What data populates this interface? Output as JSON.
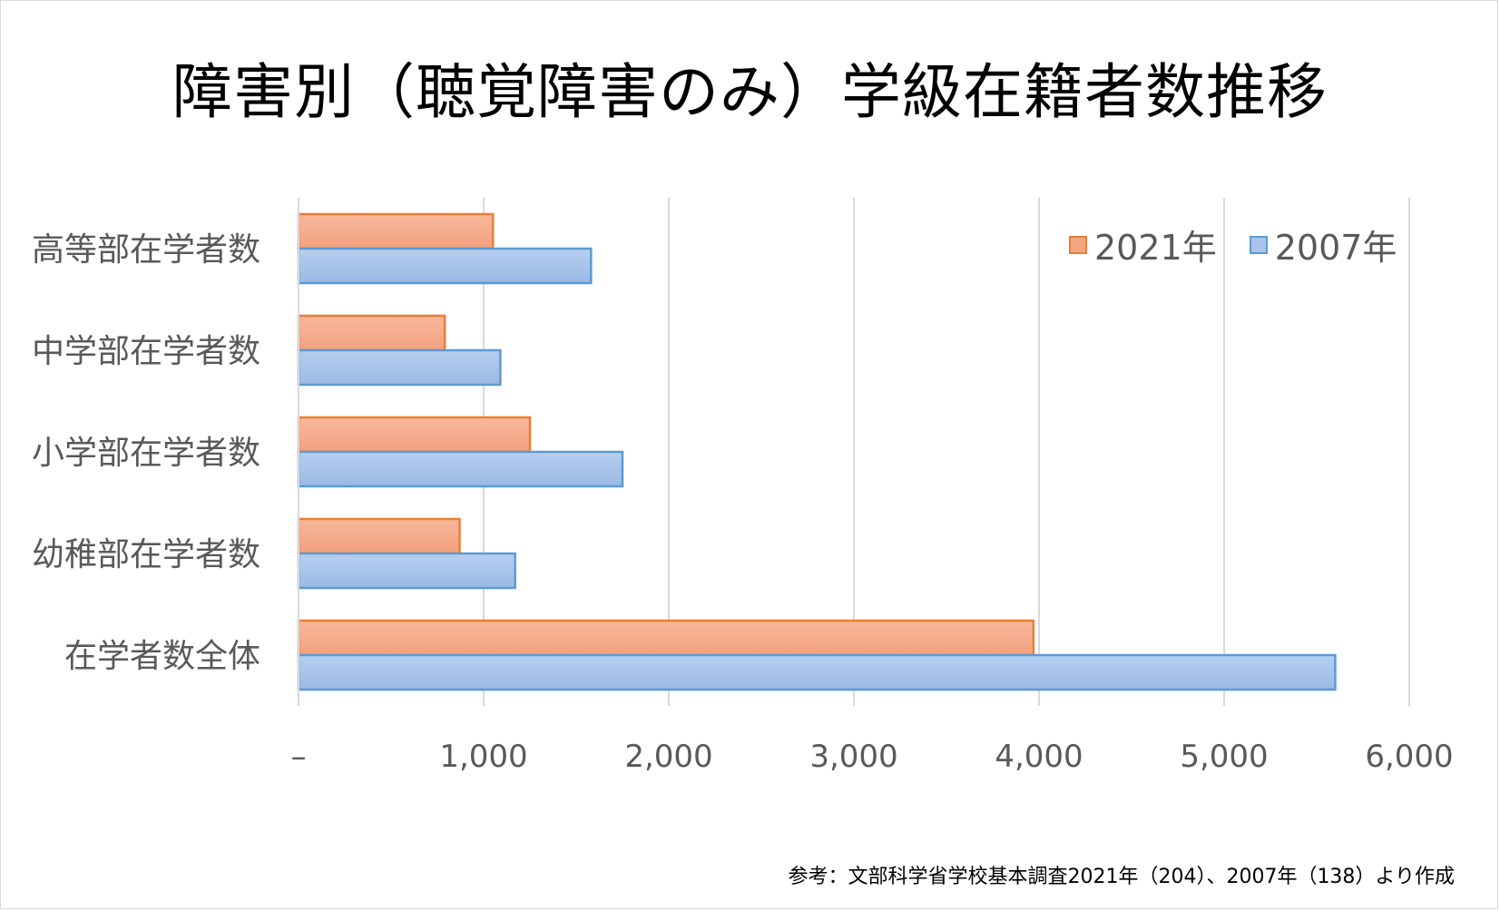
{
  "chart_data": {
    "type": "bar",
    "orientation": "horizontal",
    "title": "障害別（聴覚障害のみ）学級在籍者数推移",
    "categories": [
      "高等部在学者数",
      "中学部在学者数",
      "小学部在学者数",
      "幼稚部在学者数",
      "在学者数全体"
    ],
    "series": [
      {
        "name": "2021年",
        "values": [
          1050,
          790,
          1250,
          870,
          3970
        ],
        "color": "#f4a582",
        "stroke": "#ed7d31"
      },
      {
        "name": "2007年",
        "values": [
          1580,
          1090,
          1750,
          1170,
          5600
        ],
        "color": "#a9c4e8",
        "stroke": "#5b9bd5"
      }
    ],
    "x_ticks": [
      "–",
      "1,000",
      "2,000",
      "3,000",
      "4,000",
      "5,000",
      "6,000"
    ],
    "xlim": [
      0,
      6000
    ],
    "grid": true,
    "legend_position": "top-right"
  },
  "source_note": "参考：文部科学省学校基本調査2021年（204）、2007年（138）より作成"
}
